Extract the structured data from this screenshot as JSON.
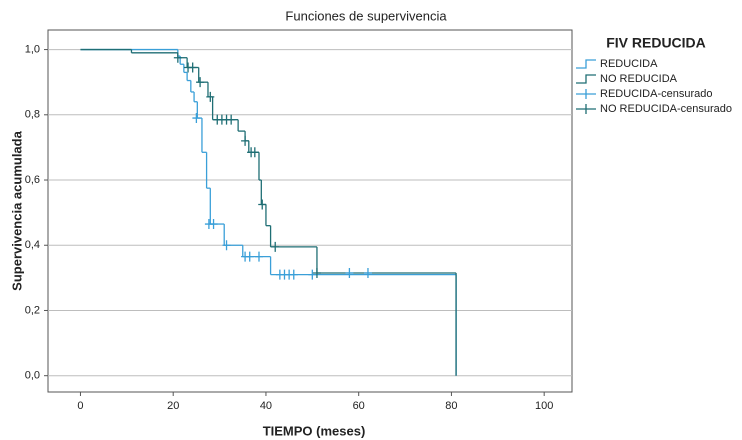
{
  "chart_data": {
    "type": "line",
    "step": "post",
    "title": "Funciones de supervivencia",
    "x_label": "TIEMPO (meses)",
    "y_label": "Supervivencia acumulada",
    "legend_title": "FIV REDUCIDA",
    "legend_position": "right",
    "grid": true,
    "xlim": [
      -7,
      106
    ],
    "ylim": [
      -0.05,
      1.06
    ],
    "xticks": [
      0,
      20,
      40,
      60,
      80,
      100
    ],
    "yticks": [
      {
        "value": 0,
        "label": "0,0"
      },
      {
        "value": 0.2,
        "label": "0,2"
      },
      {
        "value": 0.4,
        "label": "0,4"
      },
      {
        "value": 0.6,
        "label": "0,6"
      },
      {
        "value": 0.8,
        "label": "0,8"
      },
      {
        "value": 1,
        "label": "1,0"
      }
    ],
    "series": [
      {
        "name": "REDUCIDA",
        "style": "step",
        "color": "#3a9fd8",
        "x": [
          0,
          21,
          21.5,
          22.3,
          23,
          23.8,
          24.5,
          25.2,
          26.2,
          27.2,
          28,
          31,
          35,
          41,
          81
        ],
        "values": [
          1,
          0.98,
          0.955,
          0.93,
          0.905,
          0.87,
          0.84,
          0.79,
          0.685,
          0.575,
          0.465,
          0.4,
          0.365,
          0.31,
          0
        ]
      },
      {
        "name": "NO REDUCIDA",
        "style": "step",
        "color": "#1f6e74",
        "x": [
          0,
          11,
          21,
          23,
          25.5,
          27.5,
          28.5,
          34,
          35.5,
          36.3,
          38.5,
          39,
          40,
          41,
          51,
          81
        ],
        "values": [
          1,
          0.99,
          0.975,
          0.945,
          0.9,
          0.855,
          0.785,
          0.75,
          0.72,
          0.685,
          0.6,
          0.525,
          0.46,
          0.395,
          0.315,
          0
        ]
      },
      {
        "name": "REDUCIDA-censurado",
        "style": "censored",
        "color": "#3a9fd8",
        "x": [
          25,
          27.7,
          28.7,
          31.5,
          35.5,
          36.5,
          38.5,
          43,
          44,
          45,
          46,
          50,
          58,
          62
        ],
        "values": [
          0.79,
          0.465,
          0.465,
          0.4,
          0.365,
          0.365,
          0.365,
          0.31,
          0.31,
          0.31,
          0.31,
          0.31,
          0.315,
          0.315
        ]
      },
      {
        "name": "NO REDUCIDA-censurado",
        "style": "censored",
        "color": "#1f6e74",
        "x": [
          21,
          23.2,
          24.2,
          25.8,
          28,
          29.5,
          30.5,
          31.5,
          32.5,
          35.5,
          36.8,
          37.6,
          39.2,
          42,
          51
        ],
        "values": [
          0.975,
          0.945,
          0.945,
          0.9,
          0.855,
          0.785,
          0.785,
          0.785,
          0.785,
          0.72,
          0.685,
          0.685,
          0.525,
          0.395,
          0.315
        ]
      }
    ]
  }
}
